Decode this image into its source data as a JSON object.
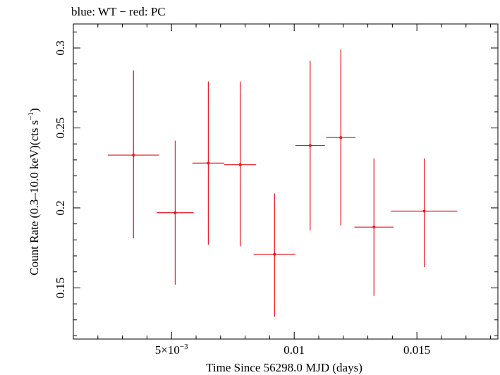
{
  "chart_data": {
    "type": "scatter",
    "title": "blue: WT − red: PC",
    "xlabel": "Time Since 56298.0 MJD (days)",
    "ylabel_main": "Count Rate (0.3–10.0 keV)(cts s",
    "ylabel_sup": "−1",
    "ylabel_end": ")",
    "xlim": [
      0.001,
      0.0183
    ],
    "ylim": [
      0.118,
      0.315
    ],
    "x_ticks": [
      {
        "value": 0.005,
        "label": "5×10",
        "sup": "−3"
      },
      {
        "value": 0.01,
        "label": "0.01",
        "sup": ""
      },
      {
        "value": 0.015,
        "label": "0.015",
        "sup": ""
      }
    ],
    "y_ticks": [
      {
        "value": 0.15,
        "label": "0.15"
      },
      {
        "value": 0.2,
        "label": "0.2"
      },
      {
        "value": 0.25,
        "label": "0.25"
      },
      {
        "value": 0.3,
        "label": "0.3"
      }
    ],
    "series": [
      {
        "color": "#e8151b",
        "points": [
          {
            "x": 0.00345,
            "xerr": 0.00105,
            "y": 0.233,
            "yerr_lo": 0.052,
            "yerr_hi": 0.053
          },
          {
            "x": 0.00515,
            "xerr": 0.00075,
            "y": 0.197,
            "yerr_lo": 0.045,
            "yerr_hi": 0.045
          },
          {
            "x": 0.0065,
            "xerr": 0.00065,
            "y": 0.228,
            "yerr_lo": 0.051,
            "yerr_hi": 0.051
          },
          {
            "x": 0.0078,
            "xerr": 0.00065,
            "y": 0.227,
            "yerr_lo": 0.051,
            "yerr_hi": 0.052
          },
          {
            "x": 0.0092,
            "xerr": 0.00085,
            "y": 0.171,
            "yerr_lo": 0.039,
            "yerr_hi": 0.038
          },
          {
            "x": 0.01065,
            "xerr": 0.0006,
            "y": 0.239,
            "yerr_lo": 0.053,
            "yerr_hi": 0.053
          },
          {
            "x": 0.0119,
            "xerr": 0.0006,
            "y": 0.244,
            "yerr_lo": 0.055,
            "yerr_hi": 0.055
          },
          {
            "x": 0.01325,
            "xerr": 0.0008,
            "y": 0.188,
            "yerr_lo": 0.043,
            "yerr_hi": 0.043
          },
          {
            "x": 0.0153,
            "xerr": 0.00135,
            "y": 0.198,
            "yerr_lo": 0.035,
            "yerr_hi": 0.033
          }
        ]
      }
    ]
  }
}
